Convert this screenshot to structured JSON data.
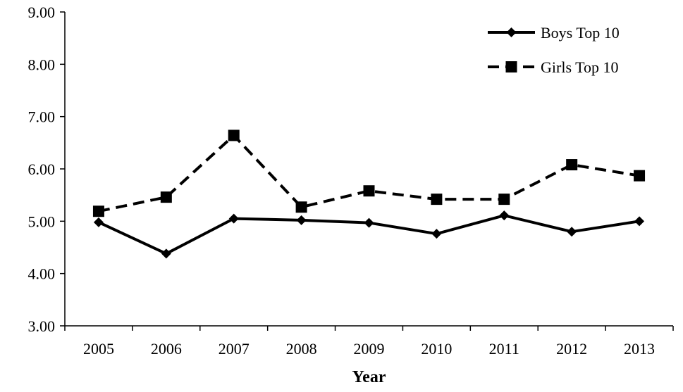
{
  "chart_data": {
    "type": "line",
    "title": "",
    "xlabel": "Year",
    "ylabel": "",
    "categories": [
      "2005",
      "2006",
      "2007",
      "2008",
      "2009",
      "2010",
      "2011",
      "2012",
      "2013"
    ],
    "ylim": [
      3.0,
      9.0
    ],
    "yticks": [
      "3.00",
      "4.00",
      "5.00",
      "6.00",
      "7.00",
      "8.00",
      "9.00"
    ],
    "grid": false,
    "legend_position": "top-right",
    "series": [
      {
        "name": "Boys Top 10",
        "values": [
          4.98,
          4.38,
          5.05,
          5.02,
          4.97,
          4.76,
          5.11,
          4.8,
          5.0
        ],
        "line_style": "solid",
        "marker": "diamond",
        "color": "#000000"
      },
      {
        "name": "Girls Top 10",
        "values": [
          5.19,
          5.46,
          6.64,
          5.27,
          5.58,
          5.42,
          5.42,
          6.08,
          5.87
        ],
        "line_style": "dashed",
        "marker": "square",
        "color": "#000000"
      }
    ]
  }
}
